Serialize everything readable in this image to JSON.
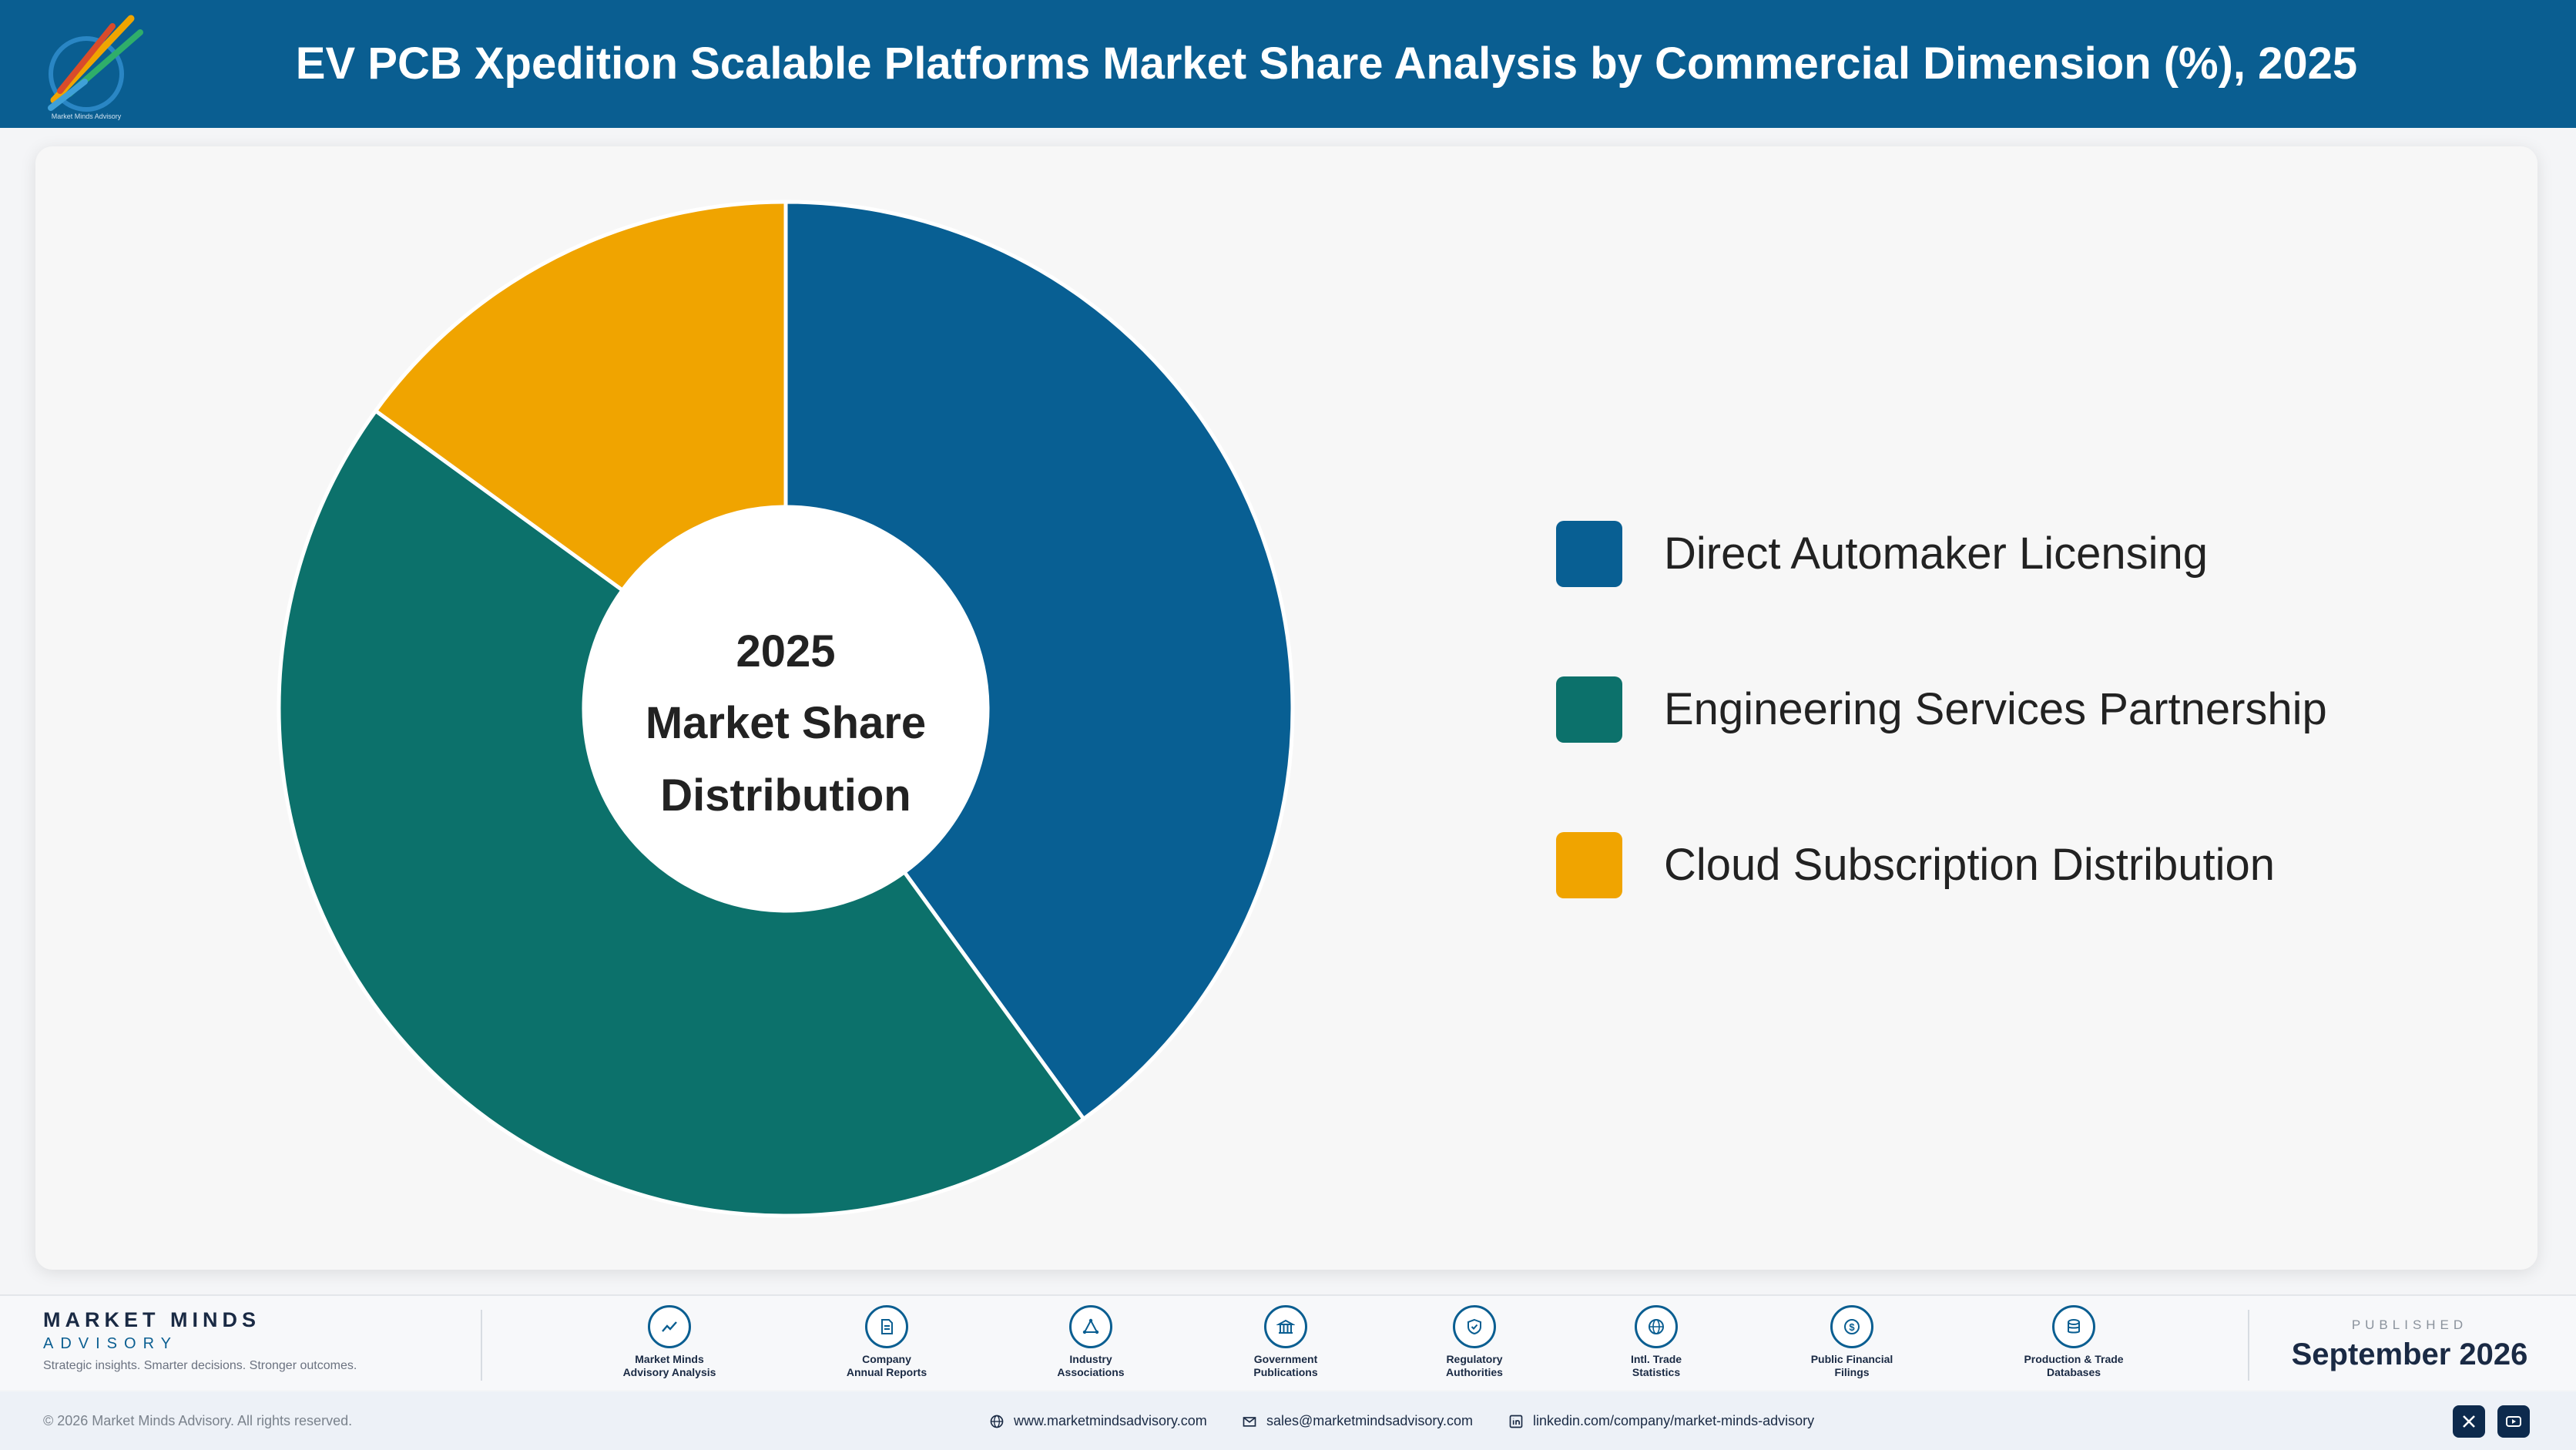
{
  "header": {
    "title": "EV PCB Xpedition Scalable Platforms Market Share Analysis by Commercial Dimension (%), 2025",
    "logo_text": "Market Minds Advisory"
  },
  "chart_data": {
    "type": "pie",
    "variant": "donut",
    "title": "EV PCB Xpedition Scalable Platforms Market Share Analysis by Commercial Dimension (%), 2025",
    "center_label": [
      "2025",
      "Market Share",
      "Distribution"
    ],
    "categories": [
      "Direct Automaker Licensing",
      "Engineering Services Partnership",
      "Cloud Subscription Distribution"
    ],
    "values": [
      40,
      45,
      15
    ],
    "colors": [
      "#085f93",
      "#0c716b",
      "#f0a400"
    ],
    "legend_position": "right"
  },
  "footer": {
    "brand_name": "MARKET MINDS",
    "brand_sub": "ADVISORY",
    "tagline": "Strategic insights. Smarter decisions. Stronger outcomes.",
    "sources": [
      {
        "line1": "Market Minds",
        "line2": "Advisory Analysis",
        "icon": "trend-icon"
      },
      {
        "line1": "Company",
        "line2": "Annual Reports",
        "icon": "document-icon"
      },
      {
        "line1": "Industry",
        "line2": "Associations",
        "icon": "network-icon"
      },
      {
        "line1": "Government",
        "line2": "Publications",
        "icon": "building-icon"
      },
      {
        "line1": "Regulatory",
        "line2": "Authorities",
        "icon": "shield-icon"
      },
      {
        "line1": "Intl. Trade",
        "line2": "Statistics",
        "icon": "globe-icon"
      },
      {
        "line1": "Public Financial",
        "line2": "Filings",
        "icon": "dollar-icon"
      },
      {
        "line1": "Production & Trade",
        "line2": "Databases",
        "icon": "database-icon"
      }
    ],
    "published_label": "PUBLISHED",
    "published_date": "September 2026"
  },
  "bottom": {
    "copyright": "© 2026 Market Minds Advisory. All rights reserved.",
    "website": "www.marketmindsadvisory.com",
    "email": "sales@marketmindsadvisory.com",
    "linkedin": "linkedin.com/company/market-minds-advisory"
  }
}
